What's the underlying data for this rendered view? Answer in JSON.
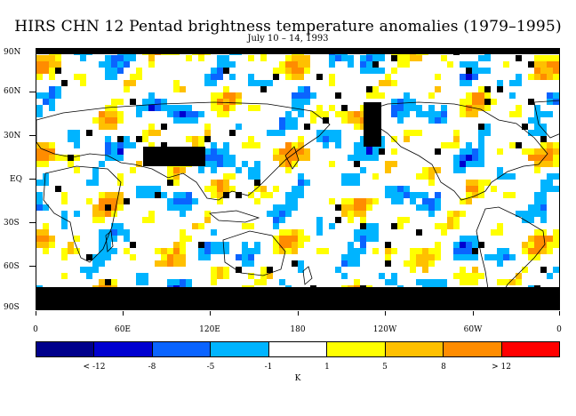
{
  "title": "HIRS CHN 12 Pentad brightness temperature anomalies (1979–1995)",
  "subtitle": "July 10 – 14, 1993",
  "lat_labels": [
    "90N",
    "60N",
    "30N",
    "EQ",
    "30S",
    "60S",
    "90S"
  ],
  "lon_labels": [
    "0",
    "60E",
    "120E",
    "180",
    "120W",
    "60W",
    "0"
  ],
  "colorbar": {
    "colors": [
      "#00008b",
      "#0000d0",
      "#0a64ff",
      "#00b4ff",
      "#ffffff",
      "#ffff00",
      "#ffc000",
      "#ff8c00",
      "#ff0000"
    ],
    "labels": [
      "< -12",
      "-8",
      "-5",
      "-1",
      "1",
      "5",
      "8",
      "> 12"
    ],
    "unit": "K"
  },
  "chart_data": {
    "type": "heatmap",
    "title": "HIRS CHN 12 Pentad brightness temperature anomalies (1979–1995)",
    "subtitle": "July 10 – 14, 1993",
    "xlabel": "",
    "ylabel": "",
    "x_ticks": [
      "0",
      "60E",
      "120E",
      "180",
      "120W",
      "60W",
      "0"
    ],
    "y_ticks": [
      "90N",
      "60N",
      "30N",
      "EQ",
      "30S",
      "60S",
      "90S"
    ],
    "xlim": [
      0,
      360
    ],
    "ylim": [
      -90,
      90
    ],
    "levels": [
      -12,
      -8,
      -5,
      -1,
      1,
      5,
      8,
      12
    ],
    "unit": "K",
    "missing_color": "#000000"
  }
}
